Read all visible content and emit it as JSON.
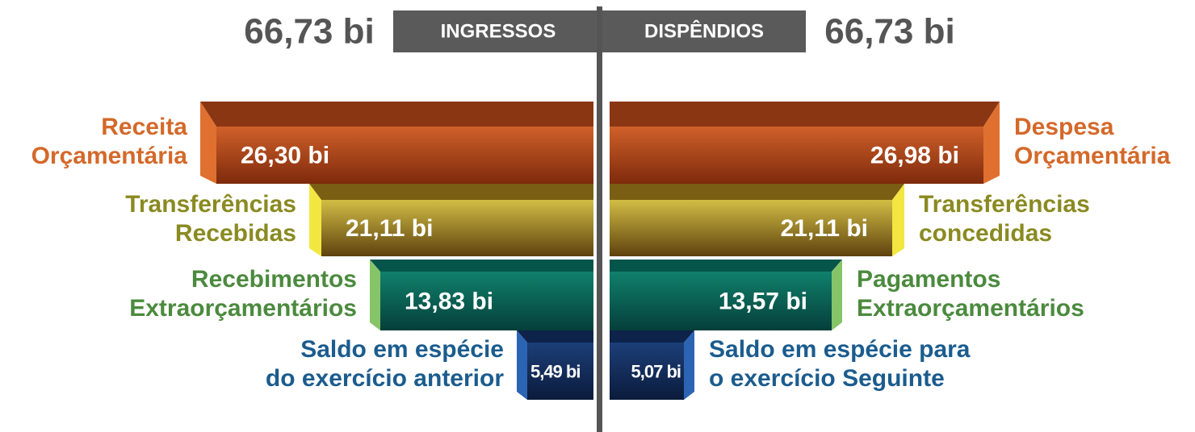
{
  "header": {
    "left_total": "66,73 bi",
    "left_title": "INGRESSOS",
    "right_title": "DISPÊNDIOS",
    "right_total": "66,73 bi"
  },
  "left": [
    {
      "label": [
        "Receita",
        "Orçamentária"
      ],
      "value": "26,30 bi"
    },
    {
      "label": [
        "Transferências",
        "Recebidas"
      ],
      "value": "21,11 bi"
    },
    {
      "label": [
        "Recebimentos",
        "Extraorçamentários"
      ],
      "value": "13,83 bi"
    },
    {
      "label": [
        "Saldo em espécie",
        "do exercício anterior"
      ],
      "value": "5,49 bi"
    }
  ],
  "right": [
    {
      "label": [
        "Despesa",
        "Orçamentária"
      ],
      "value": "26,98 bi"
    },
    {
      "label": [
        "Transferências",
        "concedidas"
      ],
      "value": "21,11 bi"
    },
    {
      "label": [
        "Pagamentos",
        "Extraorçamentários"
      ],
      "value": "13,57 bi"
    },
    {
      "label": [
        "Saldo em espécie para",
        "o exercício Seguinte"
      ],
      "value": "5,07 bi"
    }
  ]
}
